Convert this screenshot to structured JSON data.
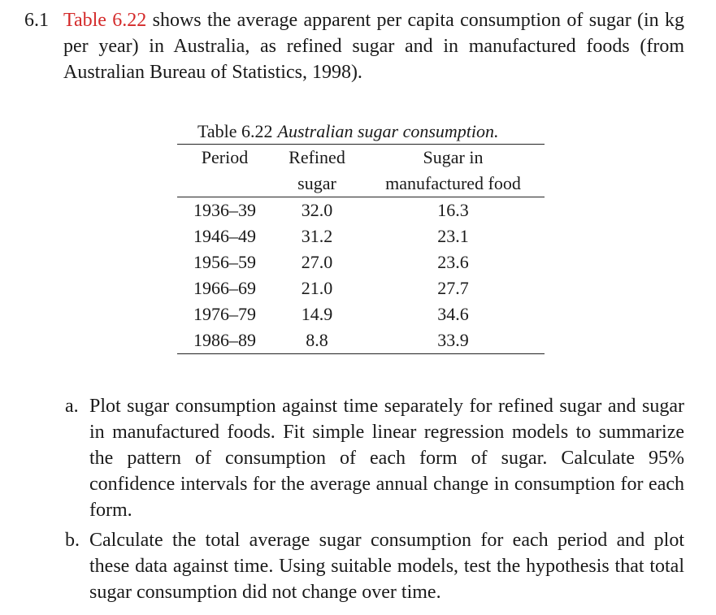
{
  "exercise": {
    "number": "6.1",
    "reference": "Table 6.22",
    "text": "shows the average apparent per capita consumption of sugar (in kg per year) in Australia, as refined sugar and in manufactured foods (from Australian Bureau of Statistics, 1998).",
    "table": {
      "caption_label": "Table 6.22",
      "caption_title": "Australian sugar consumption.",
      "headers": [
        [
          "Period"
        ],
        [
          "Refined",
          "sugar"
        ],
        [
          "Sugar in",
          "manufactured food"
        ]
      ],
      "rows": [
        [
          "1936–39",
          "32.0",
          "16.3"
        ],
        [
          "1946–49",
          "31.2",
          "23.1"
        ],
        [
          "1956–59",
          "27.0",
          "23.6"
        ],
        [
          "1966–69",
          "21.0",
          "27.7"
        ],
        [
          "1976–79",
          "14.9",
          "34.6"
        ],
        [
          "1986–89",
          "8.8",
          "33.9"
        ]
      ]
    },
    "questions": [
      {
        "label": "a.",
        "text": "Plot sugar consumption against time separately for refined sugar and sugar in manufactured foods. Fit simple linear regression models to summarize the pattern of consumption of each form of sugar. Calculate 95% confidence intervals for the average annual change in consumption for each form."
      },
      {
        "label": "b.",
        "text": "Calculate the total average sugar consumption for each period and plot these data against time. Using suitable models, test the hypothesis that total sugar consumption did not change over time."
      }
    ]
  }
}
